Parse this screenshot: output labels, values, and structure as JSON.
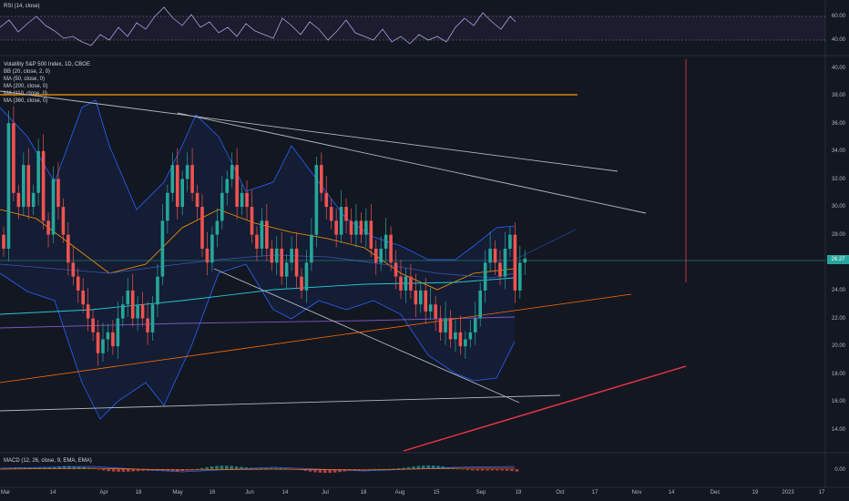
{
  "rsi": {
    "label": "RSI (14, close)",
    "ticks": [
      "60.00",
      "40.00"
    ]
  },
  "main": {
    "title": "Volatility S&P 500 Index, 1D, CBOE",
    "legend": [
      "BB (20, close, 2, 0)",
      "MA (50, close, 0)",
      "MA (200, close, 0)",
      "MA (110, close, 0)",
      "MA (360, close, 0)"
    ],
    "ticks": [
      "40.00",
      "38.00",
      "36.00",
      "34.00",
      "32.00",
      "30.00",
      "28.00",
      "26.00",
      "24.00",
      "22.00",
      "20.00",
      "18.00",
      "16.00",
      "14.00"
    ],
    "last_price": "26.27",
    "last_price_color": "#26a69a",
    "up_color": "#26a69a",
    "down_color": "#ef5350"
  },
  "macd": {
    "label": "MACD (12, 26, close, 9, EMA, EMA)",
    "tick": "0.00"
  },
  "time_axis": [
    "Mar",
    "14",
    "Apr",
    "18",
    "May",
    "16",
    "Jun",
    "14",
    "Jul",
    "18",
    "Aug",
    "15",
    "Sep",
    "19",
    "Oct",
    "17",
    "Nov",
    "14",
    "Dec",
    "19",
    "2023",
    "17"
  ]
}
